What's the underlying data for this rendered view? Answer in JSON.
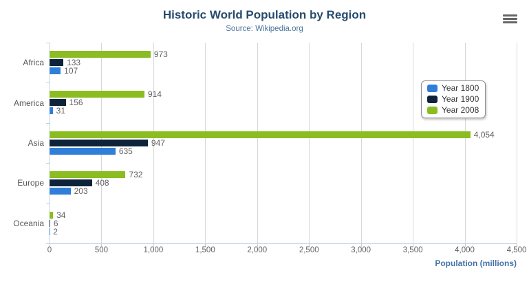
{
  "header": {
    "title": "Historic World Population by Region",
    "subtitle": "Source: Wikipedia.org"
  },
  "menu_button": {
    "icon": "hamburger",
    "color": "#666666"
  },
  "chart_data": {
    "type": "bar",
    "orientation": "horizontal",
    "title": "Historic World Population by Region",
    "subtitle": "Source: Wikipedia.org",
    "categories": [
      "Africa",
      "America",
      "Asia",
      "Europe",
      "Oceania"
    ],
    "series": [
      {
        "name": "Year 1800",
        "color": "#2f7ed8",
        "values": [
          107,
          31,
          635,
          203,
          2
        ]
      },
      {
        "name": "Year 1900",
        "color": "#0d233a",
        "values": [
          133,
          156,
          947,
          408,
          6
        ]
      },
      {
        "name": "Year 2008",
        "color": "#8bbc21",
        "values": [
          973,
          914,
          4054,
          732,
          34
        ]
      }
    ],
    "bar_display_order_top_to_bottom": [
      "Year 2008",
      "Year 1900",
      "Year 1800"
    ],
    "data_labels": true,
    "xlabel": "Population (millions)",
    "xlim": [
      0,
      4500
    ],
    "x_ticks": [
      0,
      500,
      1000,
      1500,
      2000,
      2500,
      3000,
      3500,
      4000,
      4500
    ],
    "grid": true,
    "legend_position": "right",
    "colors": {
      "title": "#274b6d",
      "subtitle": "#4d759e",
      "axis_title": "#4572a7",
      "grid_line": "#d8d8d8",
      "axis_line": "#c0d0e0",
      "labels": "#606060"
    }
  }
}
